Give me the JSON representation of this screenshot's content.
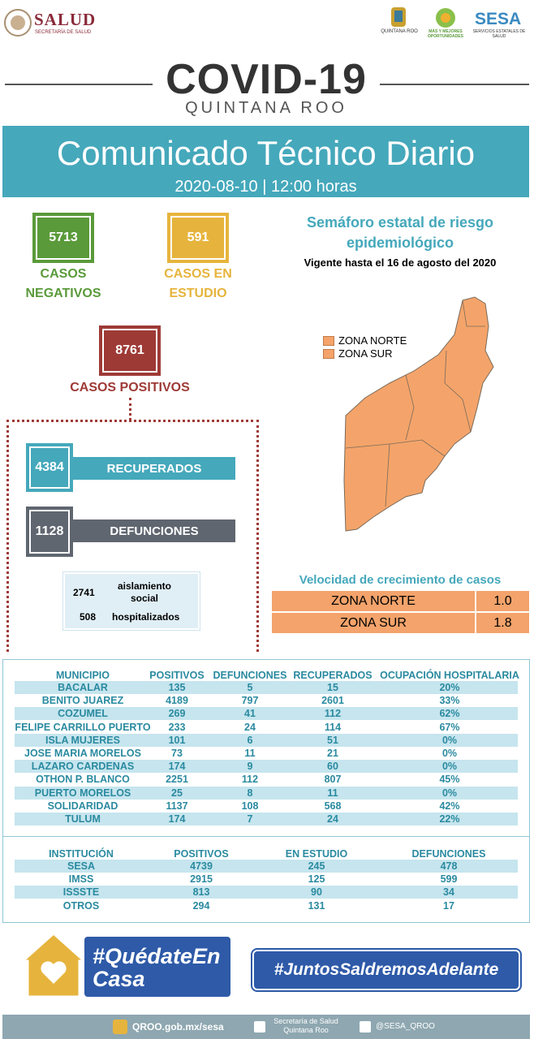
{
  "header": {
    "left_logo": "SALUD",
    "left_logo_sub": "SECRETARÍA DE SALUD",
    "state_logo": "QUINTANA ROO",
    "slogan_logo": "MÁS Y MEJORES OPORTUNIDADES",
    "sesa_logo": "SESA",
    "sesa_logo_sub": "SERVICIOS ESTATALES DE SALUD"
  },
  "banner": {
    "title": "COVID-19",
    "subtitle": "QUINTANA ROO"
  },
  "report": {
    "title": "Comunicado Técnico Diario",
    "date": "2020-08-10 | 12:00 horas"
  },
  "counts": {
    "negatives": {
      "value": "5713",
      "label": "CASOS NEGATIVOS"
    },
    "in_study": {
      "value": "591",
      "label": "CASOS EN ESTUDIO"
    },
    "positives": {
      "value": "8761",
      "label": "CASOS POSITIVOS"
    },
    "recovered": {
      "value": "4384",
      "label": "RECUPERADOS"
    },
    "deaths": {
      "value": "1128",
      "label": "DEFUNCIONES"
    },
    "isolation": {
      "value": "2741",
      "label": "aislamiento social"
    },
    "hospitalized": {
      "value": "508",
      "label": "hospitalizados"
    }
  },
  "risk_map": {
    "title": "Semáforo estatal de riesgo epidemiológico",
    "validity": "Vigente hasta el 16 de agosto del 2020",
    "legend": [
      "ZONA NORTE",
      "ZONA SUR"
    ]
  },
  "growth": {
    "title": "Velocidad de crecimiento de casos",
    "rows": [
      [
        "ZONA NORTE",
        "1.0"
      ],
      [
        "ZONA SUR",
        "1.8"
      ]
    ]
  },
  "municipalities": {
    "header": [
      "MUNICIPIO",
      "POSITIVOS",
      "DEFUNCIONES",
      "RECUPERADOS",
      "OCUPACIÓN HOSPITALARIA"
    ],
    "rows": [
      [
        "BACALAR",
        "135",
        "5",
        "15",
        "20%"
      ],
      [
        "BENITO JUAREZ",
        "4189",
        "797",
        "2601",
        "33%"
      ],
      [
        "COZUMEL",
        "269",
        "41",
        "112",
        "62%"
      ],
      [
        "FELIPE CARRILLO PUERTO",
        "233",
        "24",
        "114",
        "67%"
      ],
      [
        "ISLA MUJERES",
        "101",
        "6",
        "51",
        "0%"
      ],
      [
        "JOSE MARIA MORELOS",
        "73",
        "11",
        "21",
        "0%"
      ],
      [
        "LAZARO CARDENAS",
        "174",
        "9",
        "60",
        "0%"
      ],
      [
        "OTHON P. BLANCO",
        "2251",
        "112",
        "807",
        "45%"
      ],
      [
        "PUERTO MORELOS",
        "25",
        "8",
        "11",
        "0%"
      ],
      [
        "SOLIDARIDAD",
        "1137",
        "108",
        "568",
        "42%"
      ],
      [
        "TULUM",
        "174",
        "7",
        "24",
        "22%"
      ]
    ]
  },
  "institutions": {
    "header": [
      "INSTITUCIÓN",
      "POSITIVOS",
      "EN ESTUDIO",
      "DEFUNCIONES"
    ],
    "rows": [
      [
        "SESA",
        "4739",
        "245",
        "478"
      ],
      [
        "IMSS",
        "2915",
        "125",
        "599"
      ],
      [
        "ISSSTE",
        "813",
        "90",
        "34"
      ],
      [
        "OTROS",
        "294",
        "131",
        "17"
      ]
    ]
  },
  "footer": {
    "stay_home": "#QuédateEnCasa",
    "together": "#JuntosSaldremosAdelante",
    "website": "QROO.gob.mx/sesa",
    "facebook": "Secretaría de Salud Quintana Roo",
    "twitter": "@SESA_QROO"
  }
}
